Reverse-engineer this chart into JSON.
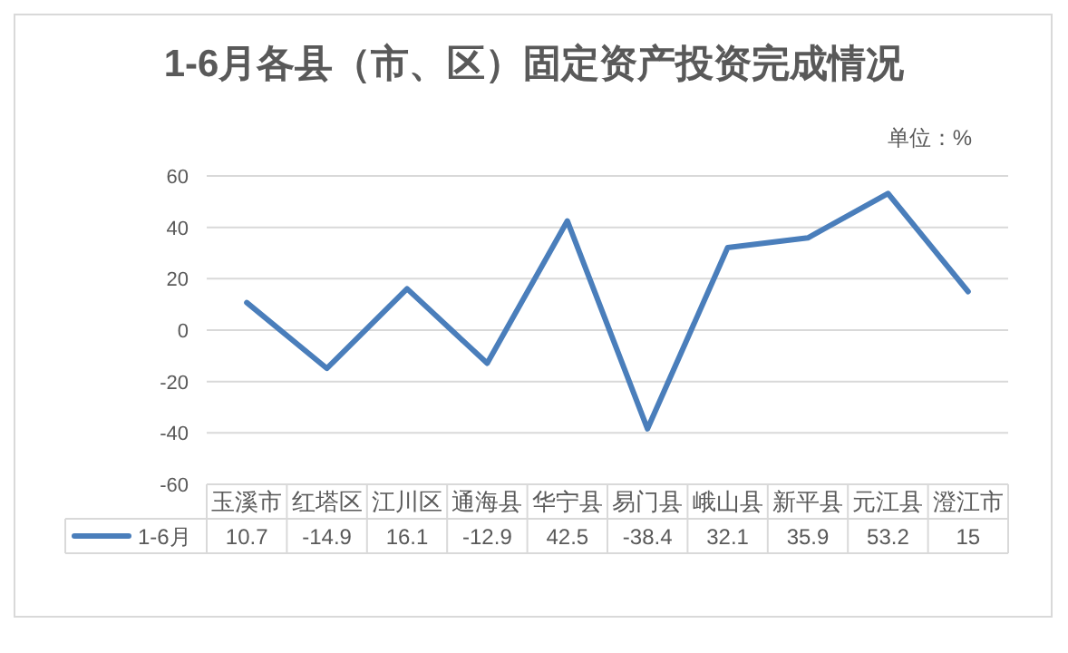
{
  "chart_data": {
    "type": "line",
    "title": "1-6月各县（市、区）固定资产投资完成情况",
    "annotations": [
      "单位：%"
    ],
    "categories": [
      "玉溪市",
      "红塔区",
      "江川区",
      "通海县",
      "华宁县",
      "易门县",
      "峨山县",
      "新平县",
      "元江县",
      "澄江市"
    ],
    "series": [
      {
        "name": "1-6月",
        "color": "#4a7ebb",
        "values": [
          10.7,
          -14.9,
          16.1,
          -12.9,
          42.5,
          -38.4,
          32.1,
          35.9,
          53.2,
          15
        ]
      }
    ],
    "ylim": [
      -60,
      60
    ],
    "yticks": [
      -60,
      -40,
      -20,
      0,
      20,
      40,
      60
    ],
    "grid": "y",
    "legend": "bottom",
    "data_labels": true
  }
}
